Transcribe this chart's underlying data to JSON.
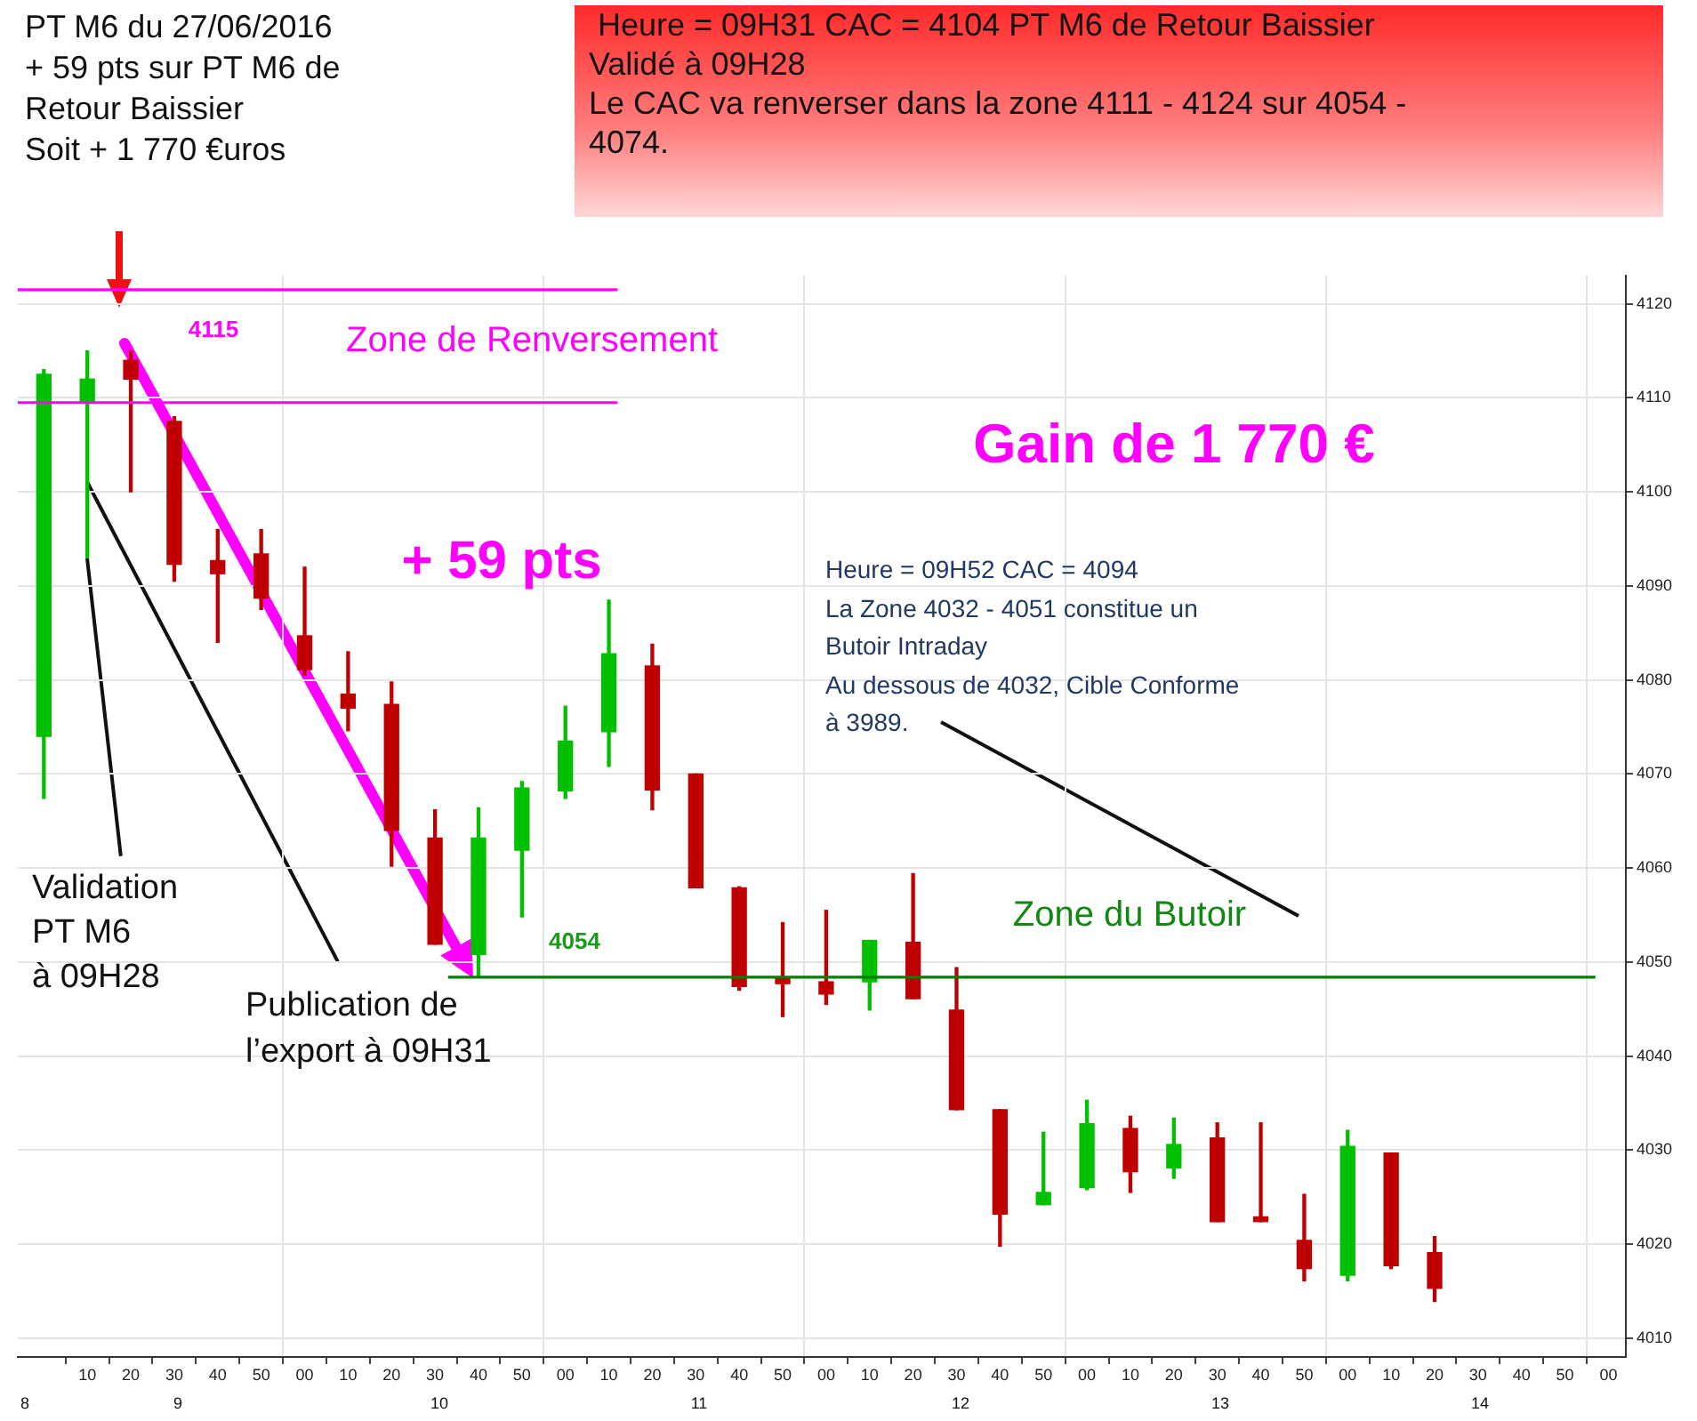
{
  "chart_data": {
    "type": "candlestick",
    "xlim": [
      "2016-06-27T08:54",
      "2016-06-27T15:04"
    ],
    "ylim": [
      4008,
      4123
    ],
    "xticks": [
      {
        "value": "2016-06-27T09:10",
        "label": "10"
      },
      {
        "value": "2016-06-27T09:20",
        "label": "20"
      },
      {
        "value": "2016-06-27T09:30",
        "label": "30"
      },
      {
        "value": "2016-06-27T09:40",
        "label": "40"
      },
      {
        "value": "2016-06-27T09:50",
        "label": "50"
      },
      {
        "value": "2016-06-27T10:00",
        "label": "00"
      },
      {
        "value": "2016-06-27T10:10",
        "label": "10"
      },
      {
        "value": "2016-06-27T10:20",
        "label": "20"
      },
      {
        "value": "2016-06-27T10:30",
        "label": "30"
      },
      {
        "value": "2016-06-27T10:40",
        "label": "40"
      },
      {
        "value": "2016-06-27T10:50",
        "label": "50"
      },
      {
        "value": "2016-06-27T11:00",
        "label": "00"
      },
      {
        "value": "2016-06-27T11:10",
        "label": "10"
      },
      {
        "value": "2016-06-27T11:20",
        "label": "20"
      },
      {
        "value": "2016-06-27T11:30",
        "label": "30"
      },
      {
        "value": "2016-06-27T11:40",
        "label": "40"
      },
      {
        "value": "2016-06-27T11:50",
        "label": "50"
      },
      {
        "value": "2016-06-27T12:00",
        "label": "00"
      },
      {
        "value": "2016-06-27T12:10",
        "label": "10"
      },
      {
        "value": "2016-06-27T12:20",
        "label": "20"
      },
      {
        "value": "2016-06-27T12:30",
        "label": "30"
      },
      {
        "value": "2016-06-27T12:40",
        "label": "40"
      },
      {
        "value": "2016-06-27T12:50",
        "label": "50"
      },
      {
        "value": "2016-06-27T13:00",
        "label": "00"
      },
      {
        "value": "2016-06-27T13:10",
        "label": "10"
      },
      {
        "value": "2016-06-27T13:20",
        "label": "20"
      },
      {
        "value": "2016-06-27T13:30",
        "label": "30"
      },
      {
        "value": "2016-06-27T13:40",
        "label": "40"
      },
      {
        "value": "2016-06-27T13:50",
        "label": "50"
      },
      {
        "value": "2016-06-27T14:00",
        "label": "00"
      },
      {
        "value": "2016-06-27T14:10",
        "label": "10"
      },
      {
        "value": "2016-06-27T14:20",
        "label": "20"
      },
      {
        "value": "2016-06-27T14:30",
        "label": "30"
      },
      {
        "value": "2016-06-27T14:40",
        "label": "40"
      },
      {
        "value": "2016-06-27T14:50",
        "label": "50"
      },
      {
        "value": "2016-06-27T15:00",
        "label": "00"
      }
    ],
    "yticks": [
      4010,
      4020,
      4030,
      4040,
      4050,
      4060,
      4070,
      4080,
      4090,
      4100,
      4110,
      4120
    ],
    "grid": true,
    "x": [
      "2016-06-27T09:00",
      "2016-06-27T09:10",
      "2016-06-27T09:20",
      "2016-06-27T09:30",
      "2016-06-27T09:40",
      "2016-06-27T09:50",
      "2016-06-27T10:00",
      "2016-06-27T10:10",
      "2016-06-27T10:20",
      "2016-06-27T10:30",
      "2016-06-27T10:40",
      "2016-06-27T10:50",
      "2016-06-27T11:00",
      "2016-06-27T11:10",
      "2016-06-27T11:20",
      "2016-06-27T11:30",
      "2016-06-27T11:40",
      "2016-06-27T11:50",
      "2016-06-27T12:00",
      "2016-06-27T12:10",
      "2016-06-27T12:20",
      "2016-06-27T12:30",
      "2016-06-27T12:40",
      "2016-06-27T12:50",
      "2016-06-27T13:00",
      "2016-06-27T13:10",
      "2016-06-27T13:20",
      "2016-06-27T13:30",
      "2016-06-27T13:40",
      "2016-06-27T13:50",
      "2016-06-27T14:00",
      "2016-06-27T14:10",
      "2016-06-27T14:20"
    ],
    "ohlc": [
      [
        4074,
        4113,
        4067.4,
        4112.5
      ],
      [
        4109.6,
        4115,
        4093,
        4112
      ],
      [
        4114,
        4115,
        4100,
        4112
      ],
      [
        4107.5,
        4108,
        4090.5,
        4092.3
      ],
      [
        4092.7,
        4096,
        4084,
        4091.3
      ],
      [
        4093.4,
        4096,
        4087.5,
        4088.7
      ],
      [
        4084.7,
        4092,
        4080.5,
        4081.1
      ],
      [
        4078.5,
        4083,
        4074.6,
        4077
      ],
      [
        4077.4,
        4079.8,
        4060.2,
        4064
      ],
      [
        4063.2,
        4066.2,
        4051.9,
        4051.9
      ],
      [
        4050.8,
        4066.4,
        4048.5,
        4063.2
      ],
      [
        4061.9,
        4069.2,
        4054.8,
        4068.5
      ],
      [
        4068.2,
        4077.2,
        4067.4,
        4073.5
      ],
      [
        4074.5,
        4088.5,
        4070.8,
        4082.8
      ],
      [
        4081.5,
        4083.8,
        4066.2,
        4068.3
      ],
      [
        4070,
        4070,
        4057.9,
        4057.9
      ],
      [
        4057.9,
        4058,
        4047,
        4047.4
      ],
      [
        4048.3,
        4054.2,
        4044.2,
        4047.7
      ],
      [
        4047.9,
        4055.5,
        4045.5,
        4046.6
      ],
      [
        4047.9,
        4052.3,
        4044.9,
        4052.3
      ],
      [
        4052.1,
        4059.4,
        4046.1,
        4046.1
      ],
      [
        4044.9,
        4049.4,
        4034.3,
        4034.3
      ],
      [
        4034.3,
        4034.3,
        4019.8,
        4023.2
      ],
      [
        4024.2,
        4031.9,
        4024.2,
        4025.5
      ],
      [
        4026,
        4035.3,
        4025.8,
        4032.8
      ],
      [
        4032.3,
        4033.6,
        4025.5,
        4027.7
      ],
      [
        4028.1,
        4033.4,
        4027,
        4030.6
      ],
      [
        4031.3,
        4032.9,
        4022.4,
        4022.4
      ],
      [
        4022.9,
        4032.9,
        4022.4,
        4022.4
      ],
      [
        4020.4,
        4025.3,
        4016.1,
        4017.4
      ],
      [
        4016.7,
        4032.1,
        4016.1,
        4030.4
      ],
      [
        4029.7,
        4029.7,
        4017.4,
        4017.7
      ],
      [
        4019.1,
        4020.8,
        4013.9,
        4015.3
      ]
    ],
    "colors": [
      "#00c000",
      "#00c000",
      "#c00000",
      "#c00000",
      "#c00000",
      "#c00000",
      "#c00000",
      "#c00000",
      "#c00000",
      "#c00000",
      "#00c000",
      "#00c000",
      "#00c000",
      "#00c000",
      "#c00000",
      "#c00000",
      "#c00000",
      "#c00000",
      "#c00000",
      "#00c000",
      "#c00000",
      "#c00000",
      "#c00000",
      "#00c000",
      "#00c000",
      "#c00000",
      "#00c000",
      "#c00000",
      "#c00000",
      "#c00000",
      "#00c000",
      "#c00000",
      "#c00000"
    ],
    "series": [
      {
        "type": "line",
        "x": [
          "2016-06-27T08:54",
          "2016-06-27T11:12"
        ],
        "values": [
          4121.5,
          4121.5
        ],
        "color": "#ff00ff"
      },
      {
        "type": "line",
        "x": [
          "2016-06-27T08:54",
          "2016-06-27T11:12"
        ],
        "values": [
          4109.5,
          4109.5
        ],
        "color": "#ff00ff"
      },
      {
        "type": "line",
        "x": [
          "2016-06-27T10:33",
          "2016-06-27T14:57"
        ],
        "values": [
          4048.4,
          4048.4
        ],
        "color": "#008000"
      }
    ],
    "marker": "none",
    "annotations": [
      "PT M6 du 27/06/2016\n+ 59 pts sur PT M6 de\nRetour Baissier\nSoit + 1 770 €uros",
      " Heure = 09H31 CAC = 4104 PT M6 de Retour Baissier\nValidé à 09H28\nLe CAC va renverser dans la zone 4111 - 4124 sur 4054 -\n4074.",
      "Heure = 09H52 CAC = 4094\nLa Zone 4032 - 4051 constitue un\nButoir Intraday\nAu dessous de 4032, Cible Conforme\nà 3989.",
      {
        "text": "Validation\nPT M6\nà 09H28",
        "x": "2016-06-27T09:10",
        "y": 4093
      },
      {
        "text": "Publication de\nl’export à 09H31",
        "x": "2016-06-27T09:10",
        "y": 4101
      },
      "4115",
      "Zone de Renversement",
      "+ 59 pts",
      "Gain de 1 770 €",
      "4054",
      "Zone du Butoir",
      "8",
      "9",
      "10",
      "11",
      "12",
      "13",
      "14"
    ]
  }
}
